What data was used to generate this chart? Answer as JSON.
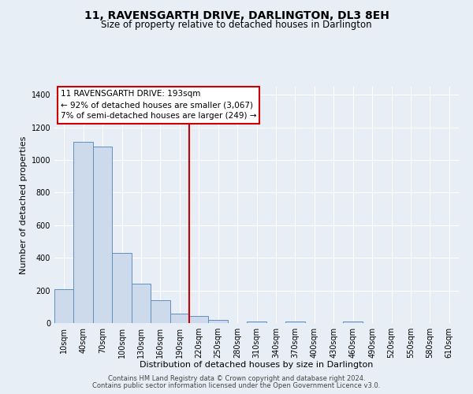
{
  "title": "11, RAVENSGARTH DRIVE, DARLINGTON, DL3 8EH",
  "subtitle": "Size of property relative to detached houses in Darlington",
  "xlabel": "Distribution of detached houses by size in Darlington",
  "ylabel": "Number of detached properties",
  "bar_labels": [
    "10sqm",
    "40sqm",
    "70sqm",
    "100sqm",
    "130sqm",
    "160sqm",
    "190sqm",
    "220sqm",
    "250sqm",
    "280sqm",
    "310sqm",
    "340sqm",
    "370sqm",
    "400sqm",
    "430sqm",
    "460sqm",
    "490sqm",
    "520sqm",
    "550sqm",
    "580sqm",
    "610sqm"
  ],
  "bar_values": [
    210,
    1110,
    1085,
    430,
    240,
    140,
    60,
    45,
    20,
    0,
    12,
    0,
    8,
    0,
    0,
    12,
    0,
    0,
    0,
    0,
    0
  ],
  "bar_color": "#ccdaeb",
  "bar_edge_color": "#5f8fbe",
  "vline_x": 6.5,
  "vline_color": "#cc0000",
  "annotation_box_text": "11 RAVENSGARTH DRIVE: 193sqm\n← 92% of detached houses are smaller (3,067)\n7% of semi-detached houses are larger (249) →",
  "annotation_box_color": "#ffffff",
  "annotation_box_edge_color": "#cc0000",
  "ylim": [
    0,
    1450
  ],
  "yticks": [
    0,
    200,
    400,
    600,
    800,
    1000,
    1200,
    1400
  ],
  "footer_line1": "Contains HM Land Registry data © Crown copyright and database right 2024.",
  "footer_line2": "Contains public sector information licensed under the Open Government Licence v3.0.",
  "bg_color": "#e8eef5",
  "plot_bg_color": "#e8eef5",
  "title_fontsize": 10,
  "subtitle_fontsize": 8.5,
  "axis_label_fontsize": 8,
  "tick_fontsize": 7,
  "annotation_fontsize": 7.5,
  "footer_fontsize": 6
}
